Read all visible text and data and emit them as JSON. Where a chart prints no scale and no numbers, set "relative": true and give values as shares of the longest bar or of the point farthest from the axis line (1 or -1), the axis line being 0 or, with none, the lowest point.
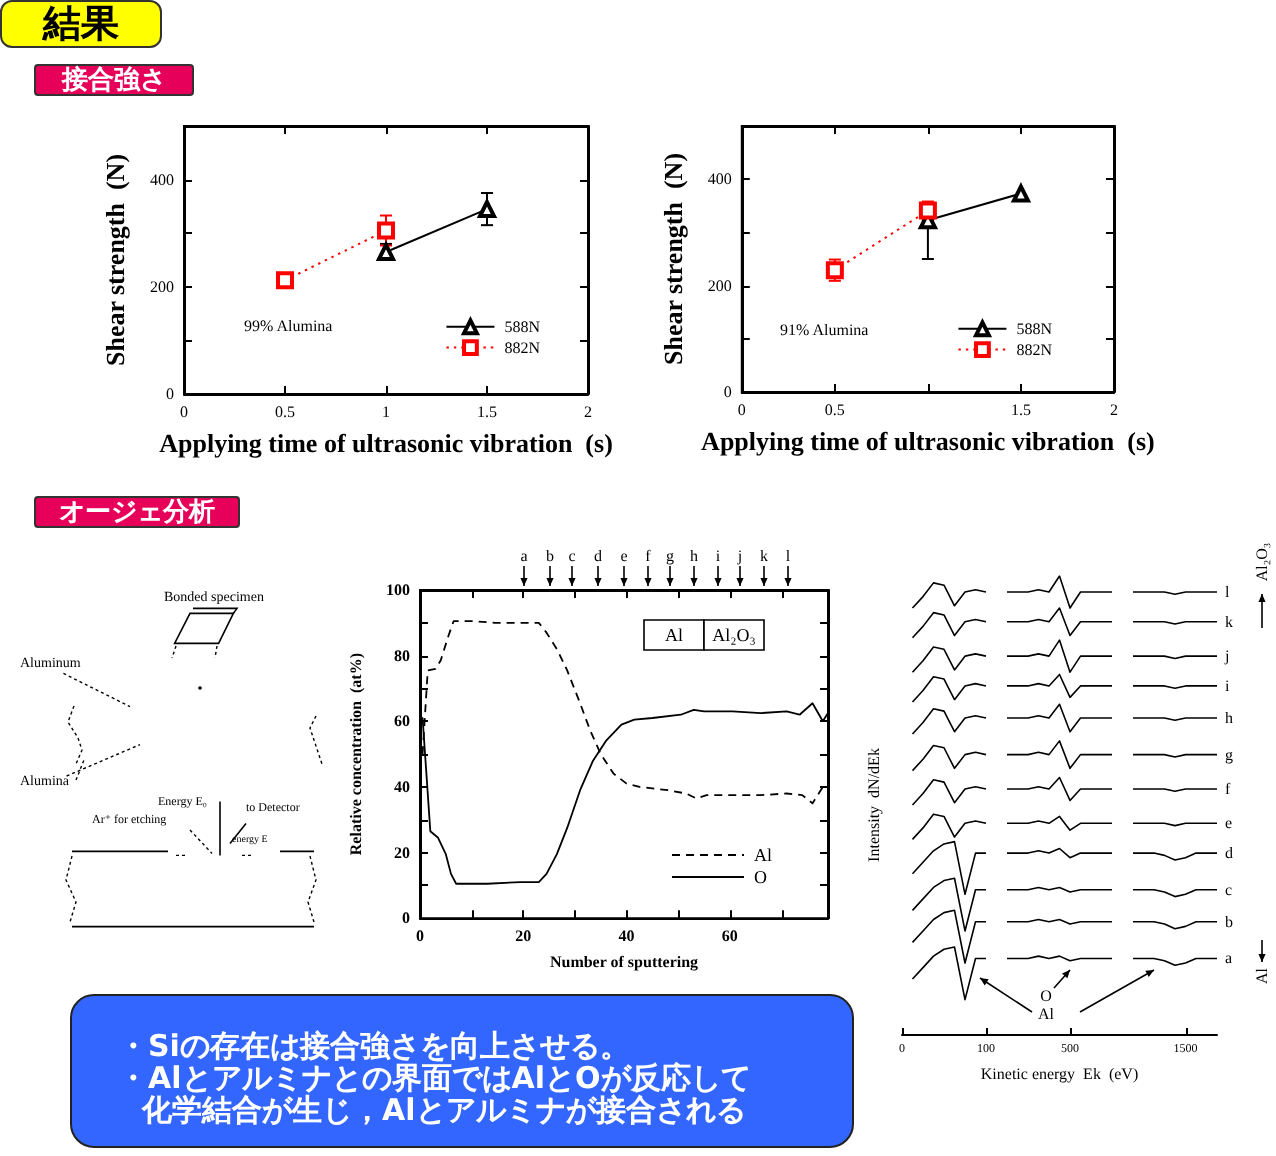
{
  "chart_data": [
    {
      "type": "line",
      "title": "結果",
      "subtitle": "接合強さ",
      "xlabel": "Applying time of ultrasonic vibration  (s)",
      "ylabel": "Shear strength  (N)",
      "xlim": [
        0,
        2
      ],
      "xticks": [
        0,
        0.5,
        1,
        1.5,
        2
      ],
      "ylim": [
        0,
        500
      ],
      "yticks": [
        0,
        {
          "value": 100,
          "label": null
        },
        200,
        {
          "value": 300,
          "label": null
        },
        400
      ],
      "series": [
        {
          "name": "588N",
          "color": "#000000",
          "x": [
            1,
            1.5
          ],
          "values": [
            265,
            345
          ],
          "errors": [
            15,
            30
          ],
          "marker": "triangle",
          "line_style": "solid"
        },
        {
          "name": "882N",
          "color": "#ff0000",
          "x": [
            0.5,
            1
          ],
          "values": [
            212,
            305
          ],
          "errors": [
            null,
            28
          ],
          "marker": "square",
          "line_style": "dotted"
        }
      ],
      "annotations": [
        "99% Alumina"
      ],
      "legend": "bottom right"
    },
    {
      "type": "line",
      "xlabel": "Applying time of ultrasonic vibration  (s)",
      "ylabel": "Shear strength  (N)",
      "xlim": [
        0,
        2
      ],
      "xticks": [
        0,
        0.5,
        {
          "value": 1,
          "label": null
        },
        1.5,
        2
      ],
      "ylim": [
        0,
        500
      ],
      "yticks": [
        0,
        {
          "value": 100,
          "label": null
        },
        200,
        {
          "value": 300,
          "label": null
        },
        400
      ],
      "series": [
        {
          "name": "588N",
          "color": "#000000",
          "x": [
            1,
            1.5
          ],
          "values": [
            323,
            373
          ],
          "errors": [
            [
              250,
              323
            ],
            null
          ],
          "marker": "triangle",
          "line_style": "solid"
        },
        {
          "name": "882N",
          "color": "#ff0000",
          "x": [
            0.5,
            1
          ],
          "values": [
            229,
            341
          ],
          "errors": [
            20,
            17
          ],
          "marker": "square",
          "line_style": "dotted"
        }
      ],
      "annotations": [
        "91% Alumina"
      ],
      "legend": "bottom right"
    },
    {
      "type": "other",
      "title": "オージェ分析",
      "annotations": [
        "Bonded specimen",
        "Aluminum",
        "Alumina",
        "Energy E₀",
        "Ar⁺ for etching",
        "to Detector",
        "energy E"
      ]
    },
    {
      "type": "line",
      "xlabel": "Number of sputtering",
      "ylabel": "Relative concentration  (at%)",
      "xlim": [
        0,
        79
      ],
      "xticks": [
        0,
        {
          "value": 10,
          "label": null
        },
        20,
        {
          "value": 30,
          "label": null
        },
        40,
        {
          "value": 50,
          "label": null
        },
        60,
        {
          "value": 70,
          "label": null
        }
      ],
      "ylim": [
        0,
        100
      ],
      "yticks": [
        0,
        {
          "value": 10,
          "label": null
        },
        20,
        {
          "value": 30,
          "label": null
        },
        40,
        {
          "value": 50,
          "label": null
        },
        60,
        {
          "value": 70,
          "label": null
        },
        80,
        {
          "value": 90,
          "label": null
        },
        100
      ],
      "marker": "none",
      "legend": "bottom right",
      "series": [
        {
          "name": "Al",
          "color": "#000000",
          "line_style": "dashed",
          "x": [
            0.5,
            1.5,
            3,
            4,
            5.5,
            6.5,
            8,
            10.5,
            14.5,
            19.5,
            23,
            24.5,
            26.5,
            28.5,
            31,
            33,
            35,
            37.5,
            40,
            42.5,
            48,
            51.5,
            53.5,
            55.5,
            60.5,
            66,
            71,
            74,
            76,
            78,
            79
          ],
          "values": [
            50,
            75.5,
            76,
            78.5,
            86,
            90.5,
            90.5,
            90.5,
            90,
            90,
            90,
            87,
            82,
            75.5,
            65.5,
            57,
            50,
            44,
            41,
            40,
            39,
            38,
            36.5,
            37.5,
            37.5,
            37.5,
            38,
            37.5,
            35,
            40,
            39
          ]
        },
        {
          "name": "O",
          "color": "#000000",
          "line_style": "solid",
          "x": [
            0,
            0.5,
            2,
            3.5,
            5,
            6,
            7,
            8,
            13,
            19.5,
            23,
            24.5,
            26.5,
            28.5,
            31,
            33.5,
            36,
            39,
            41.5,
            45,
            50.5,
            53,
            55,
            60.5,
            66,
            71,
            73.5,
            76,
            78,
            79
          ],
          "values": [
            58,
            61,
            26.5,
            24.5,
            19.5,
            13.5,
            10.5,
            10.5,
            10.5,
            11,
            11,
            13.5,
            19.5,
            27.5,
            39,
            48,
            54,
            59,
            60.5,
            61,
            62,
            63.5,
            63,
            63,
            62.5,
            63,
            62,
            65.5,
            60,
            62.5
          ]
        }
      ],
      "annotations": [
        "a",
        "b",
        "c",
        "d",
        "e",
        "f",
        "g",
        "h",
        "i",
        "j",
        "k",
        "l",
        "Al",
        "Al₂O₃"
      ]
    },
    {
      "type": "line",
      "relative": true,
      "marker": "none",
      "legend": "right",
      "xlabel": "Kinetic energy  Ek  (eV)",
      "ylabel": "Intensity  dN/dEk",
      "categories": [
        "0",
        null,
        null,
        null,
        null,
        null,
        null,
        null,
        "100",
        null,
        null,
        null,
        null,
        null,
        null,
        null,
        "500",
        null,
        null,
        null,
        null,
        null,
        null,
        null,
        null,
        null,
        null,
        "1500",
        null,
        null,
        null
      ],
      "series": [
        {
          "name": "a",
          "color": "#000000",
          "values": [
            null,
            0.12,
            0.145,
            0.17,
            0.185,
            0.19,
            0.075,
            0.165,
            0.165,
            null,
            0.165,
            0.165,
            0.165,
            0.17,
            0.165,
            0.17,
            0.16,
            0.165,
            0.165,
            0.165,
            0.165,
            null,
            0.165,
            0.165,
            0.165,
            0.16,
            0.15,
            0.155,
            0.165,
            0.165,
            0.165
          ]
        },
        {
          "name": "b",
          "color": "#000000",
          "values": [
            null,
            0.2,
            0.225,
            0.25,
            0.265,
            0.27,
            0.155,
            0.245,
            0.245,
            null,
            0.245,
            0.245,
            0.245,
            0.25,
            0.245,
            0.25,
            0.24,
            0.245,
            0.245,
            0.245,
            0.245,
            null,
            0.245,
            0.245,
            0.245,
            0.24,
            0.23,
            0.235,
            0.245,
            0.245,
            0.245
          ]
        },
        {
          "name": "c",
          "color": "#000000",
          "values": [
            null,
            0.27,
            0.295,
            0.32,
            0.335,
            0.34,
            0.225,
            0.315,
            0.315,
            null,
            0.315,
            0.315,
            0.315,
            0.32,
            0.315,
            0.32,
            0.31,
            0.315,
            0.315,
            0.315,
            0.315,
            null,
            0.315,
            0.315,
            0.315,
            0.31,
            0.3,
            0.305,
            0.315,
            0.315,
            0.315
          ]
        },
        {
          "name": "d",
          "color": "#000000",
          "values": [
            null,
            0.35,
            0.375,
            0.4,
            0.415,
            0.42,
            0.305,
            0.395,
            0.395,
            null,
            0.395,
            0.395,
            0.395,
            0.4,
            0.395,
            0.405,
            0.385,
            0.395,
            0.395,
            0.395,
            0.395,
            null,
            0.395,
            0.395,
            0.395,
            0.39,
            0.38,
            0.385,
            0.395,
            0.395,
            0.395
          ]
        },
        {
          "name": "e",
          "color": "#000000",
          "values": [
            null,
            0.425,
            0.45,
            0.48,
            0.475,
            0.43,
            0.46,
            0.465,
            0.46,
            null,
            0.46,
            0.46,
            0.46,
            0.465,
            0.46,
            0.475,
            0.445,
            0.46,
            0.46,
            0.46,
            0.46,
            null,
            0.46,
            0.46,
            0.46,
            0.46,
            0.455,
            0.46,
            0.46,
            0.46,
            0.46
          ]
        },
        {
          "name": "f",
          "color": "#000000",
          "values": [
            null,
            0.5,
            0.525,
            0.555,
            0.55,
            0.505,
            0.535,
            0.54,
            0.535,
            null,
            0.535,
            0.535,
            0.535,
            0.54,
            0.535,
            0.56,
            0.51,
            0.535,
            0.535,
            0.535,
            0.535,
            null,
            0.535,
            0.535,
            0.535,
            0.535,
            0.53,
            0.535,
            0.535,
            0.535,
            0.535
          ]
        },
        {
          "name": "g",
          "color": "#000000",
          "values": [
            null,
            0.575,
            0.6,
            0.63,
            0.625,
            0.58,
            0.61,
            0.615,
            0.61,
            null,
            0.61,
            0.61,
            0.61,
            0.615,
            0.61,
            0.64,
            0.58,
            0.61,
            0.61,
            0.61,
            0.61,
            null,
            0.61,
            0.61,
            0.61,
            0.61,
            0.605,
            0.61,
            0.61,
            0.61,
            0.61
          ]
        },
        {
          "name": "h",
          "color": "#000000",
          "values": [
            null,
            0.655,
            0.68,
            0.71,
            0.705,
            0.66,
            0.69,
            0.695,
            0.69,
            null,
            0.69,
            0.69,
            0.69,
            0.695,
            0.69,
            0.72,
            0.66,
            0.69,
            0.69,
            0.69,
            0.69,
            null,
            0.69,
            0.69,
            0.69,
            0.69,
            0.685,
            0.69,
            0.69,
            0.69,
            0.69
          ]
        },
        {
          "name": "i",
          "color": "#000000",
          "values": [
            null,
            0.725,
            0.75,
            0.78,
            0.775,
            0.73,
            0.76,
            0.765,
            0.76,
            null,
            0.76,
            0.76,
            0.76,
            0.765,
            0.76,
            0.785,
            0.735,
            0.76,
            0.76,
            0.76,
            0.76,
            null,
            0.76,
            0.76,
            0.76,
            0.76,
            0.755,
            0.76,
            0.76,
            0.76,
            0.76
          ]
        },
        {
          "name": "j",
          "color": "#000000",
          "values": [
            null,
            0.79,
            0.815,
            0.845,
            0.84,
            0.795,
            0.825,
            0.83,
            0.825,
            null,
            0.825,
            0.825,
            0.825,
            0.83,
            0.825,
            0.86,
            0.79,
            0.825,
            0.825,
            0.825,
            0.825,
            null,
            0.825,
            0.825,
            0.825,
            0.825,
            0.82,
            0.825,
            0.825,
            0.825,
            0.825
          ]
        },
        {
          "name": "k",
          "color": "#000000",
          "values": [
            null,
            0.865,
            0.89,
            0.92,
            0.915,
            0.87,
            0.9,
            0.905,
            0.9,
            null,
            0.9,
            0.9,
            0.9,
            0.905,
            0.9,
            0.93,
            0.87,
            0.9,
            0.9,
            0.9,
            0.9,
            null,
            0.9,
            0.9,
            0.9,
            0.9,
            0.895,
            0.9,
            0.9,
            0.9,
            0.9
          ]
        },
        {
          "name": "l",
          "color": "#000000",
          "values": [
            null,
            0.93,
            0.955,
            0.985,
            0.98,
            0.935,
            0.965,
            0.97,
            0.965,
            null,
            0.965,
            0.965,
            0.965,
            0.97,
            0.965,
            1,
            0.93,
            0.965,
            0.965,
            0.965,
            0.965,
            null,
            0.965,
            0.965,
            0.965,
            0.965,
            0.96,
            0.965,
            0.965,
            0.965,
            0.965
          ]
        }
      ],
      "annotations": [
        "O",
        "Al",
        "Al₂O₃",
        "Al"
      ]
    },
    {
      "type": "other",
      "annotations": [
        "・Siの存在は接合強さを向上させる。",
        "・Alとアルミナとの界面ではAlとOが反応して",
        "化学結合が生じ，Alとアルミナが接合される"
      ]
    }
  ]
}
